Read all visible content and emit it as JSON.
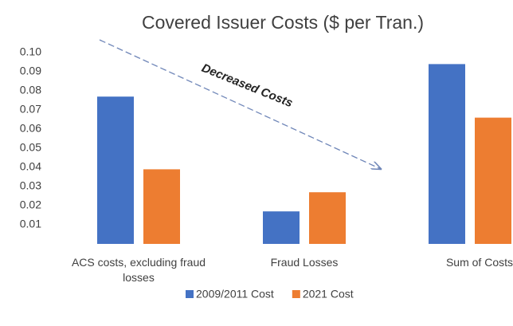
{
  "chart_data": {
    "type": "bar",
    "title": "Covered Issuer Costs ($ per Tran.)",
    "annotation": "Decreased Costs",
    "categories": [
      "ACS costs, excluding fraud losses",
      "Fraud Losses",
      "Sum of Costs"
    ],
    "series": [
      {
        "name": "2009/2011 Cost",
        "color": "#4472c4",
        "values": [
          0.077,
          0.017,
          0.094
        ]
      },
      {
        "name": "2021 Cost",
        "color": "#ed7d31",
        "values": [
          0.039,
          0.027,
          0.066
        ]
      }
    ],
    "ylim": [
      0,
      0.1
    ],
    "yticks": [
      {
        "value": 0.01,
        "label": "0.01"
      },
      {
        "value": 0.02,
        "label": "0.02"
      },
      {
        "value": 0.03,
        "label": "0.03"
      },
      {
        "value": 0.04,
        "label": "0.04"
      },
      {
        "value": 0.05,
        "label": "0.05"
      },
      {
        "value": 0.06,
        "label": "0.06"
      },
      {
        "value": 0.07,
        "label": "0.07"
      },
      {
        "value": 0.08,
        "label": "0.08"
      },
      {
        "value": 0.09,
        "label": "0.09"
      },
      {
        "value": 0.1,
        "label": "0.10"
      }
    ],
    "grid": false,
    "legend": "bottom"
  }
}
